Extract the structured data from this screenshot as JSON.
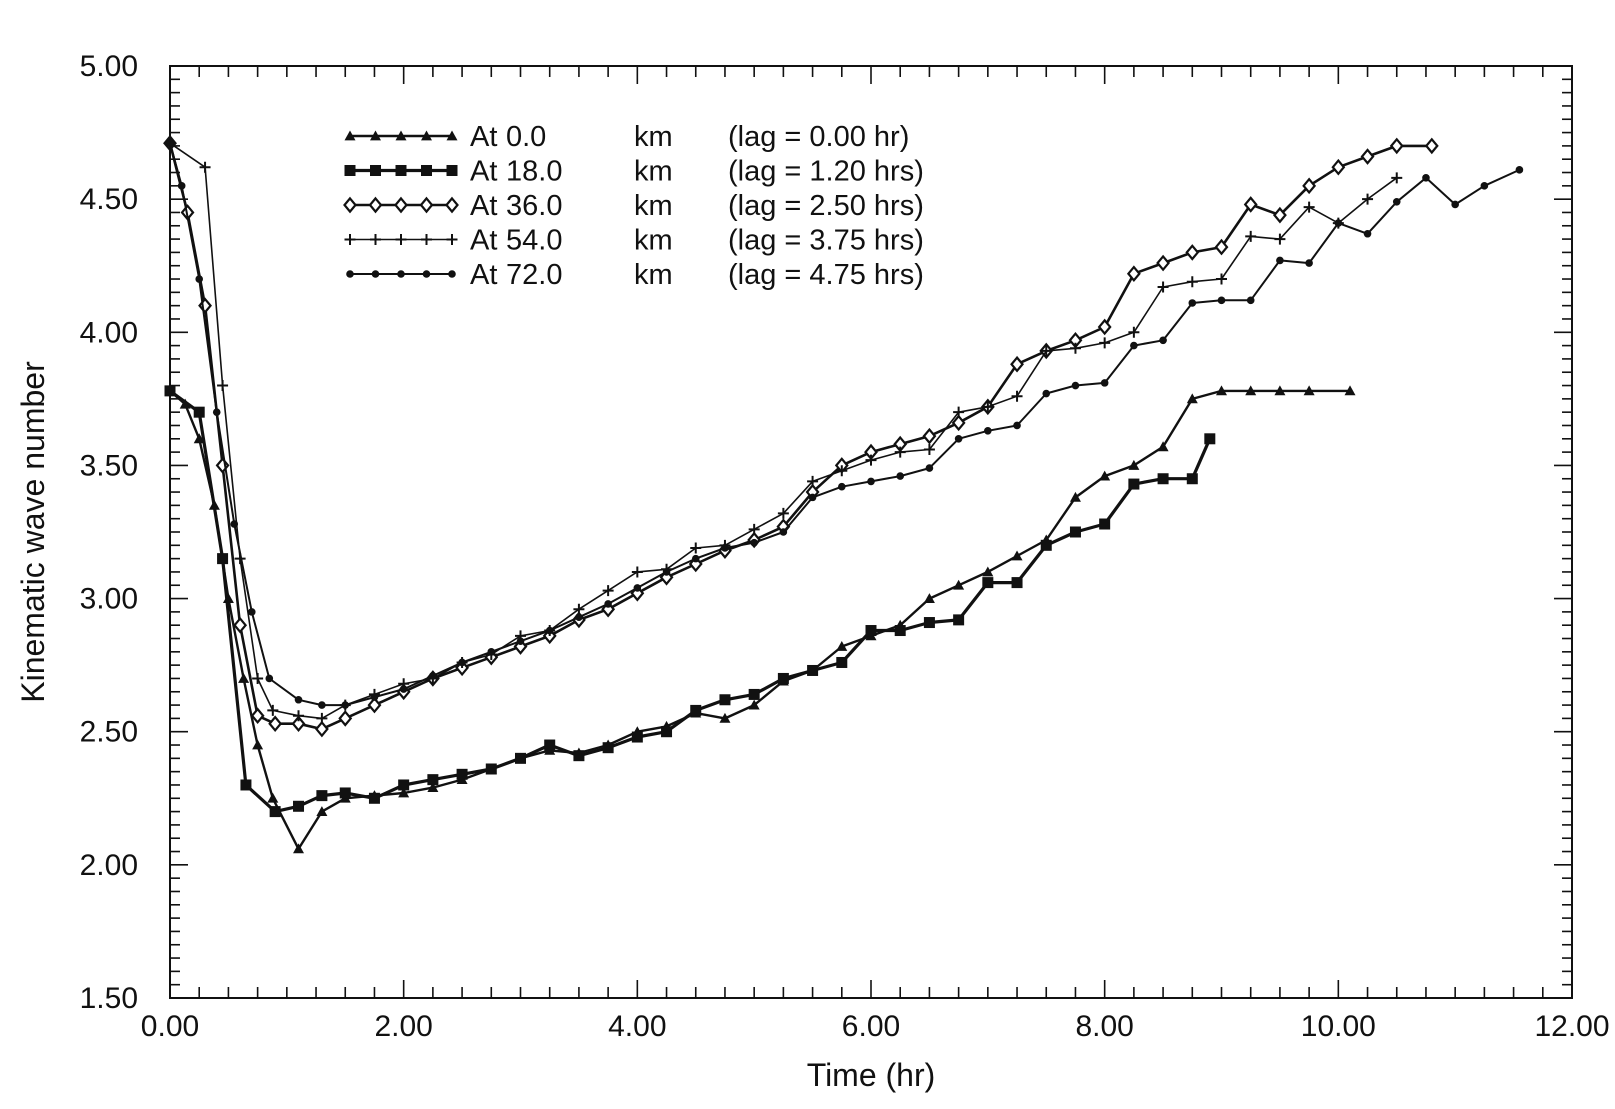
{
  "chart_data": {
    "type": "line",
    "title": "",
    "xlabel": "Time (hr)",
    "ylabel": "Kinematic wave number",
    "xlim": [
      0,
      12
    ],
    "ylim": [
      1.5,
      5.0
    ],
    "x_ticks": [
      "0.00",
      "2.00",
      "4.00",
      "6.00",
      "8.00",
      "10.00",
      "12.00"
    ],
    "y_ticks": [
      "1.50",
      "2.00",
      "2.50",
      "3.00",
      "3.50",
      "4.00",
      "4.50",
      "5.00"
    ],
    "grid": false,
    "legend_position": "top-left",
    "series": [
      {
        "name": "At 0.0 km (lag = 0.00 hr)",
        "legend": {
          "at": "At",
          "dist": "0.0",
          "unit": "km",
          "lag": "(lag = 0.00 hr)"
        },
        "marker": "triangle",
        "points": [
          [
            0,
            3.78
          ],
          [
            0.13,
            3.73
          ],
          [
            0.25,
            3.6
          ],
          [
            0.38,
            3.35
          ],
          [
            0.5,
            3.0
          ],
          [
            0.63,
            2.7
          ],
          [
            0.75,
            2.45
          ],
          [
            0.88,
            2.25
          ],
          [
            1.1,
            2.06
          ],
          [
            1.3,
            2.2
          ],
          [
            1.5,
            2.25
          ],
          [
            1.75,
            2.26
          ],
          [
            2.0,
            2.27
          ],
          [
            2.25,
            2.29
          ],
          [
            2.5,
            2.32
          ],
          [
            2.75,
            2.36
          ],
          [
            3.0,
            2.4
          ],
          [
            3.25,
            2.43
          ],
          [
            3.5,
            2.42
          ],
          [
            3.75,
            2.45
          ],
          [
            4.0,
            2.5
          ],
          [
            4.25,
            2.52
          ],
          [
            4.5,
            2.57
          ],
          [
            4.75,
            2.55
          ],
          [
            5.0,
            2.6
          ],
          [
            5.25,
            2.69
          ],
          [
            5.5,
            2.73
          ],
          [
            5.75,
            2.82
          ],
          [
            6.0,
            2.86
          ],
          [
            6.25,
            2.9
          ],
          [
            6.5,
            3.0
          ],
          [
            6.75,
            3.05
          ],
          [
            7.0,
            3.1
          ],
          [
            7.25,
            3.16
          ],
          [
            7.5,
            3.22
          ],
          [
            7.75,
            3.38
          ],
          [
            8.0,
            3.46
          ],
          [
            8.25,
            3.5
          ],
          [
            8.5,
            3.57
          ],
          [
            8.75,
            3.75
          ],
          [
            9.0,
            3.78
          ],
          [
            9.25,
            3.78
          ],
          [
            9.5,
            3.78
          ],
          [
            9.75,
            3.78
          ],
          [
            10.1,
            3.78
          ]
        ]
      },
      {
        "name": "At 18.0 km (lag = 1.20 hrs)",
        "legend": {
          "at": "At",
          "dist": "18.0",
          "unit": "km",
          "lag": "(lag = 1.20 hrs)"
        },
        "marker": "square",
        "points": [
          [
            0,
            3.78
          ],
          [
            0.25,
            3.7
          ],
          [
            0.45,
            3.15
          ],
          [
            0.65,
            2.3
          ],
          [
            0.9,
            2.2
          ],
          [
            1.1,
            2.22
          ],
          [
            1.3,
            2.26
          ],
          [
            1.5,
            2.27
          ],
          [
            1.75,
            2.25
          ],
          [
            2.0,
            2.3
          ],
          [
            2.25,
            2.32
          ],
          [
            2.5,
            2.34
          ],
          [
            2.75,
            2.36
          ],
          [
            3.0,
            2.4
          ],
          [
            3.25,
            2.45
          ],
          [
            3.5,
            2.41
          ],
          [
            3.75,
            2.44
          ],
          [
            4.0,
            2.48
          ],
          [
            4.25,
            2.5
          ],
          [
            4.5,
            2.58
          ],
          [
            4.75,
            2.62
          ],
          [
            5.0,
            2.64
          ],
          [
            5.25,
            2.7
          ],
          [
            5.5,
            2.73
          ],
          [
            5.75,
            2.76
          ],
          [
            6.0,
            2.88
          ],
          [
            6.25,
            2.88
          ],
          [
            6.5,
            2.91
          ],
          [
            6.75,
            2.92
          ],
          [
            7.0,
            3.06
          ],
          [
            7.25,
            3.06
          ],
          [
            7.5,
            3.2
          ],
          [
            7.75,
            3.25
          ],
          [
            8.0,
            3.28
          ],
          [
            8.25,
            3.43
          ],
          [
            8.5,
            3.45
          ],
          [
            8.75,
            3.45
          ],
          [
            8.9,
            3.6
          ]
        ]
      },
      {
        "name": "At 36.0 km (lag = 2.50 hrs)",
        "legend": {
          "at": "At",
          "dist": "36.0",
          "unit": "km",
          "lag": "(lag = 2.50 hrs)"
        },
        "marker": "diamond",
        "points": [
          [
            0,
            4.71
          ],
          [
            0.15,
            4.45
          ],
          [
            0.3,
            4.1
          ],
          [
            0.45,
            3.5
          ],
          [
            0.6,
            2.9
          ],
          [
            0.75,
            2.56
          ],
          [
            0.9,
            2.53
          ],
          [
            1.1,
            2.53
          ],
          [
            1.3,
            2.51
          ],
          [
            1.5,
            2.55
          ],
          [
            1.75,
            2.6
          ],
          [
            2.0,
            2.65
          ],
          [
            2.25,
            2.7
          ],
          [
            2.5,
            2.74
          ],
          [
            2.75,
            2.78
          ],
          [
            3.0,
            2.82
          ],
          [
            3.25,
            2.86
          ],
          [
            3.5,
            2.92
          ],
          [
            3.75,
            2.96
          ],
          [
            4.0,
            3.02
          ],
          [
            4.25,
            3.08
          ],
          [
            4.5,
            3.13
          ],
          [
            4.75,
            3.18
          ],
          [
            5.0,
            3.22
          ],
          [
            5.25,
            3.27
          ],
          [
            5.5,
            3.4
          ],
          [
            5.75,
            3.5
          ],
          [
            6.0,
            3.55
          ],
          [
            6.25,
            3.58
          ],
          [
            6.5,
            3.61
          ],
          [
            6.75,
            3.66
          ],
          [
            7.0,
            3.72
          ],
          [
            7.25,
            3.88
          ],
          [
            7.5,
            3.93
          ],
          [
            7.75,
            3.97
          ],
          [
            8.0,
            4.02
          ],
          [
            8.25,
            4.22
          ],
          [
            8.5,
            4.26
          ],
          [
            8.75,
            4.3
          ],
          [
            9.0,
            4.32
          ],
          [
            9.25,
            4.48
          ],
          [
            9.5,
            4.44
          ],
          [
            9.75,
            4.55
          ],
          [
            10.0,
            4.62
          ],
          [
            10.25,
            4.66
          ],
          [
            10.5,
            4.7
          ],
          [
            10.8,
            4.7
          ]
        ]
      },
      {
        "name": "At 54.0 km (lag = 3.75 hrs)",
        "legend": {
          "at": "At",
          "dist": "54.0",
          "unit": "km",
          "lag": "(lag = 3.75 hrs)"
        },
        "marker": "plus",
        "points": [
          [
            0,
            4.71
          ],
          [
            0.3,
            4.62
          ],
          [
            0.45,
            3.8
          ],
          [
            0.6,
            3.15
          ],
          [
            0.75,
            2.7
          ],
          [
            0.88,
            2.58
          ],
          [
            1.1,
            2.56
          ],
          [
            1.3,
            2.55
          ],
          [
            1.5,
            2.6
          ],
          [
            1.75,
            2.64
          ],
          [
            2.0,
            2.68
          ],
          [
            2.25,
            2.7
          ],
          [
            2.5,
            2.76
          ],
          [
            2.75,
            2.79
          ],
          [
            3.0,
            2.86
          ],
          [
            3.25,
            2.88
          ],
          [
            3.5,
            2.96
          ],
          [
            3.75,
            3.03
          ],
          [
            4.0,
            3.1
          ],
          [
            4.25,
            3.11
          ],
          [
            4.5,
            3.19
          ],
          [
            4.75,
            3.2
          ],
          [
            5.0,
            3.26
          ],
          [
            5.25,
            3.32
          ],
          [
            5.5,
            3.44
          ],
          [
            5.75,
            3.48
          ],
          [
            6.0,
            3.52
          ],
          [
            6.25,
            3.55
          ],
          [
            6.5,
            3.56
          ],
          [
            6.75,
            3.7
          ],
          [
            7.0,
            3.72
          ],
          [
            7.25,
            3.76
          ],
          [
            7.5,
            3.93
          ],
          [
            7.75,
            3.94
          ],
          [
            8.0,
            3.96
          ],
          [
            8.25,
            4.0
          ],
          [
            8.5,
            4.17
          ],
          [
            8.75,
            4.19
          ],
          [
            9.0,
            4.2
          ],
          [
            9.25,
            4.36
          ],
          [
            9.5,
            4.35
          ],
          [
            9.75,
            4.47
          ],
          [
            10.0,
            4.41
          ],
          [
            10.25,
            4.5
          ],
          [
            10.5,
            4.58
          ]
        ]
      },
      {
        "name": "At 72.0 km (lag = 4.75 hrs)",
        "legend": {
          "at": "At",
          "dist": "72.0",
          "unit": "km",
          "lag": "(lag = 4.75 hrs)"
        },
        "marker": "dot",
        "points": [
          [
            0,
            4.71
          ],
          [
            0.1,
            4.55
          ],
          [
            0.25,
            4.2
          ],
          [
            0.4,
            3.7
          ],
          [
            0.55,
            3.28
          ],
          [
            0.7,
            2.95
          ],
          [
            0.85,
            2.7
          ],
          [
            1.1,
            2.62
          ],
          [
            1.3,
            2.6
          ],
          [
            1.5,
            2.6
          ],
          [
            1.75,
            2.63
          ],
          [
            2.0,
            2.66
          ],
          [
            2.25,
            2.71
          ],
          [
            2.5,
            2.76
          ],
          [
            2.75,
            2.8
          ],
          [
            3.0,
            2.84
          ],
          [
            3.25,
            2.88
          ],
          [
            3.5,
            2.93
          ],
          [
            3.75,
            2.98
          ],
          [
            4.0,
            3.04
          ],
          [
            4.25,
            3.1
          ],
          [
            4.5,
            3.15
          ],
          [
            4.75,
            3.19
          ],
          [
            5.0,
            3.21
          ],
          [
            5.25,
            3.25
          ],
          [
            5.5,
            3.38
          ],
          [
            5.75,
            3.42
          ],
          [
            6.0,
            3.44
          ],
          [
            6.25,
            3.46
          ],
          [
            6.5,
            3.49
          ],
          [
            6.75,
            3.6
          ],
          [
            7.0,
            3.63
          ],
          [
            7.25,
            3.65
          ],
          [
            7.5,
            3.77
          ],
          [
            7.75,
            3.8
          ],
          [
            8.0,
            3.81
          ],
          [
            8.25,
            3.95
          ],
          [
            8.5,
            3.97
          ],
          [
            8.75,
            4.11
          ],
          [
            9.0,
            4.12
          ],
          [
            9.25,
            4.12
          ],
          [
            9.5,
            4.27
          ],
          [
            9.75,
            4.26
          ],
          [
            10.0,
            4.41
          ],
          [
            10.25,
            4.37
          ],
          [
            10.5,
            4.49
          ],
          [
            10.75,
            4.58
          ],
          [
            11.0,
            4.48
          ],
          [
            11.25,
            4.55
          ],
          [
            11.55,
            4.61
          ]
        ]
      }
    ]
  }
}
